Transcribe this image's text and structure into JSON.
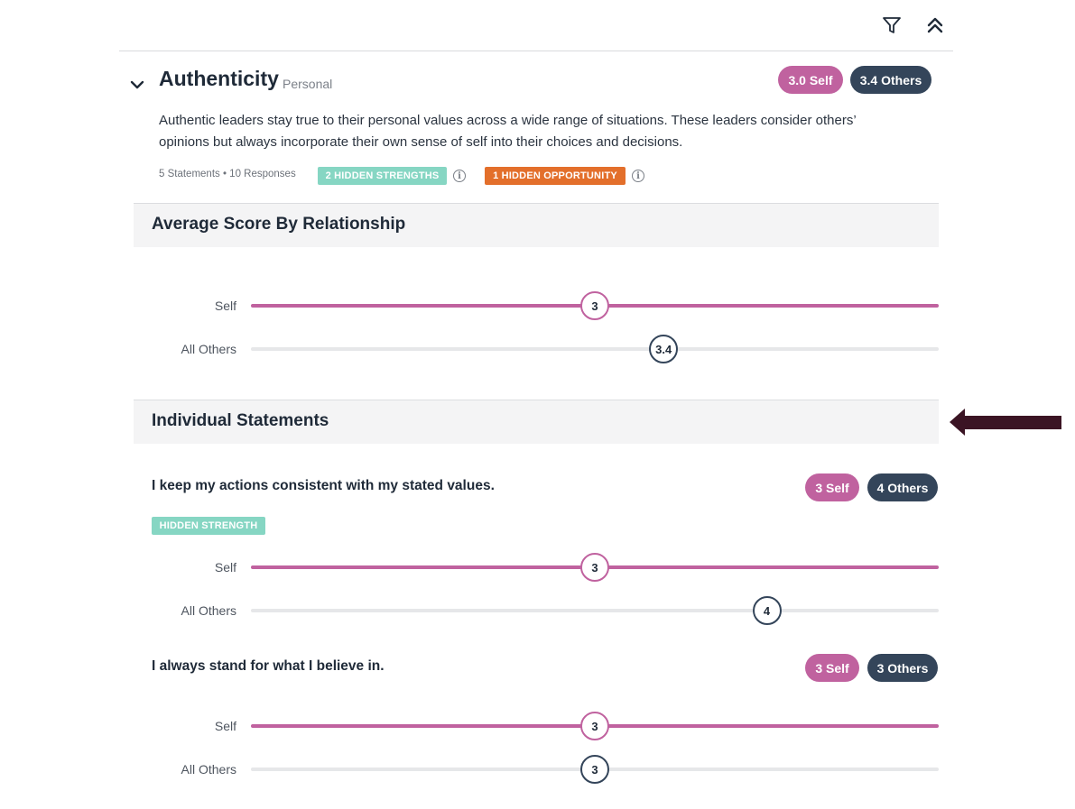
{
  "toolbar": {
    "filter_icon": "filter-icon",
    "collapse_icon": "double-chevron-up-icon"
  },
  "competency": {
    "title": "Authenticity",
    "category": "Personal",
    "self_badge": "3.0 Self",
    "others_badge": "3.4 Others",
    "description": "Authentic leaders stay true to their personal values across a wide range of situations. These leaders consider others’ opinions but always incorporate their own sense of self into their choices and decisions.",
    "meta": "5 Statements • 10 Responses",
    "hidden_strengths_tag": "2 HIDDEN STRENGTHS",
    "hidden_opportunity_tag": "1 HIDDEN OPPORTUNITY"
  },
  "average_section": {
    "heading": "Average Score By Relationship",
    "rows": [
      {
        "label": "Self",
        "value": 3,
        "display": "3"
      },
      {
        "label": "All Others",
        "value": 3.4,
        "display": "3.4"
      }
    ]
  },
  "statements_section": {
    "heading": "Individual Statements",
    "statements": [
      {
        "text": "I keep my actions consistent with my stated values.",
        "self_badge": "3 Self",
        "others_badge": "4 Others",
        "tag": "HIDDEN STRENGTH",
        "rows": [
          {
            "label": "Self",
            "value": 3,
            "display": "3"
          },
          {
            "label": "All Others",
            "value": 4,
            "display": "4"
          }
        ]
      },
      {
        "text": "I always stand for what I believe in.",
        "self_badge": "3 Self",
        "others_badge": "3 Others",
        "rows": [
          {
            "label": "Self",
            "value": 3,
            "display": "3"
          },
          {
            "label": "All Others",
            "value": 3,
            "display": "3"
          }
        ]
      }
    ]
  },
  "colors": {
    "self": "#c0629f",
    "others": "#34455a",
    "hidden_strength": "#86d6c3",
    "hidden_opportunity": "#e36f2b",
    "arrow": "#3b1424"
  }
}
